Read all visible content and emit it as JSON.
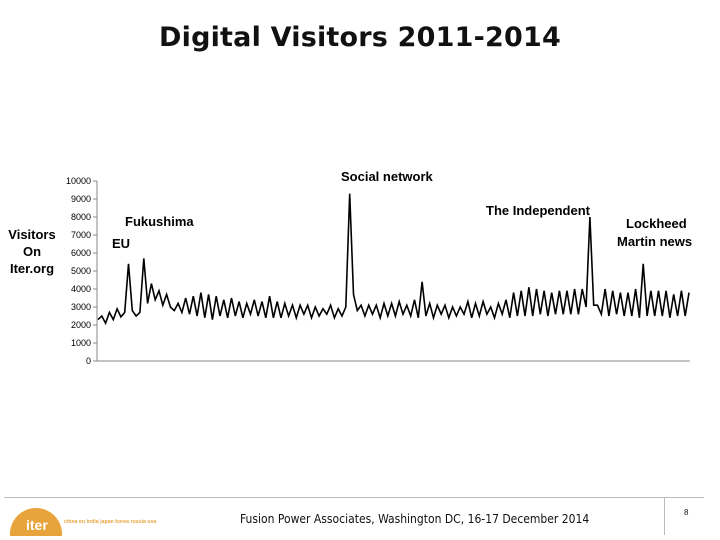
{
  "header": {
    "title": "Digital Visitors 2011-2014"
  },
  "chart_data": {
    "type": "line",
    "title": "Digital Visitors 2011-2014",
    "ylabel": [
      "Visitors",
      "On",
      "Iter.org"
    ],
    "xlabel": "",
    "ylim": [
      0,
      10000
    ],
    "yticks": [
      0,
      1000,
      2000,
      3000,
      4000,
      5000,
      6000,
      7000,
      8000,
      9000,
      10000
    ],
    "grid": false,
    "legend": "none",
    "line_color": "#000000",
    "series": [
      {
        "values": [
          2300,
          2500,
          2100,
          2700,
          2300,
          2900,
          2450,
          2700,
          5400,
          2800,
          2500,
          2700,
          5700,
          3200,
          4300,
          3400,
          3900,
          3100,
          3700,
          3000,
          2800,
          3200,
          2700,
          3500,
          2600,
          3600,
          2500,
          3800,
          2400,
          3700,
          2300,
          3600,
          2500,
          3400,
          2400,
          3500,
          2500,
          3300,
          2400,
          3200,
          2600,
          3400,
          2500,
          3300,
          2400,
          3600,
          2400,
          3300,
          2400,
          3200,
          2500,
          3100,
          2400,
          3100,
          2600,
          3100,
          2400,
          3000,
          2500,
          2900,
          2600,
          3100,
          2400,
          2900,
          2500,
          3000,
          9300,
          3700,
          2800,
          3100,
          2500,
          3100,
          2600,
          3100,
          2400,
          3200,
          2500,
          3200,
          2500,
          3300,
          2600,
          3100,
          2500,
          3400,
          2400,
          4400,
          2500,
          3200,
          2400,
          3100,
          2600,
          3100,
          2400,
          3000,
          2500,
          3000,
          2600,
          3300,
          2400,
          3200,
          2500,
          3300,
          2600,
          3000,
          2400,
          3200,
          2600,
          3400,
          2400,
          3800,
          2500,
          3900,
          2500,
          4100,
          2500,
          4000,
          2600,
          3900,
          2500,
          3800,
          2600,
          3900,
          2600,
          3900,
          2600,
          4000,
          2600,
          4000,
          3000,
          8000,
          3100,
          3100,
          2600,
          4000,
          2500,
          3900,
          2600,
          3800,
          2500,
          3800,
          2500,
          4000,
          2400,
          5400,
          2500,
          3900,
          2500,
          3900,
          2500,
          3900,
          2400,
          3700,
          2500,
          3900,
          2500,
          3800
        ]
      }
    ],
    "annotations": [
      {
        "text": "Social network"
      },
      {
        "text": "Fukushima"
      },
      {
        "text": "EU"
      },
      {
        "text": "The Independent"
      },
      {
        "text": "Lockheed"
      },
      {
        "text": "Martin news"
      }
    ]
  },
  "footer": {
    "text": "Fusion Power Associates, Washington DC, 16-17 December 2014",
    "page": "8",
    "logo_word": "iter",
    "logo_tagline": "china eu india japan korea russia usa"
  },
  "colors": {
    "logo": "#e8a33a",
    "line": "#000000",
    "axis": "#888888"
  }
}
